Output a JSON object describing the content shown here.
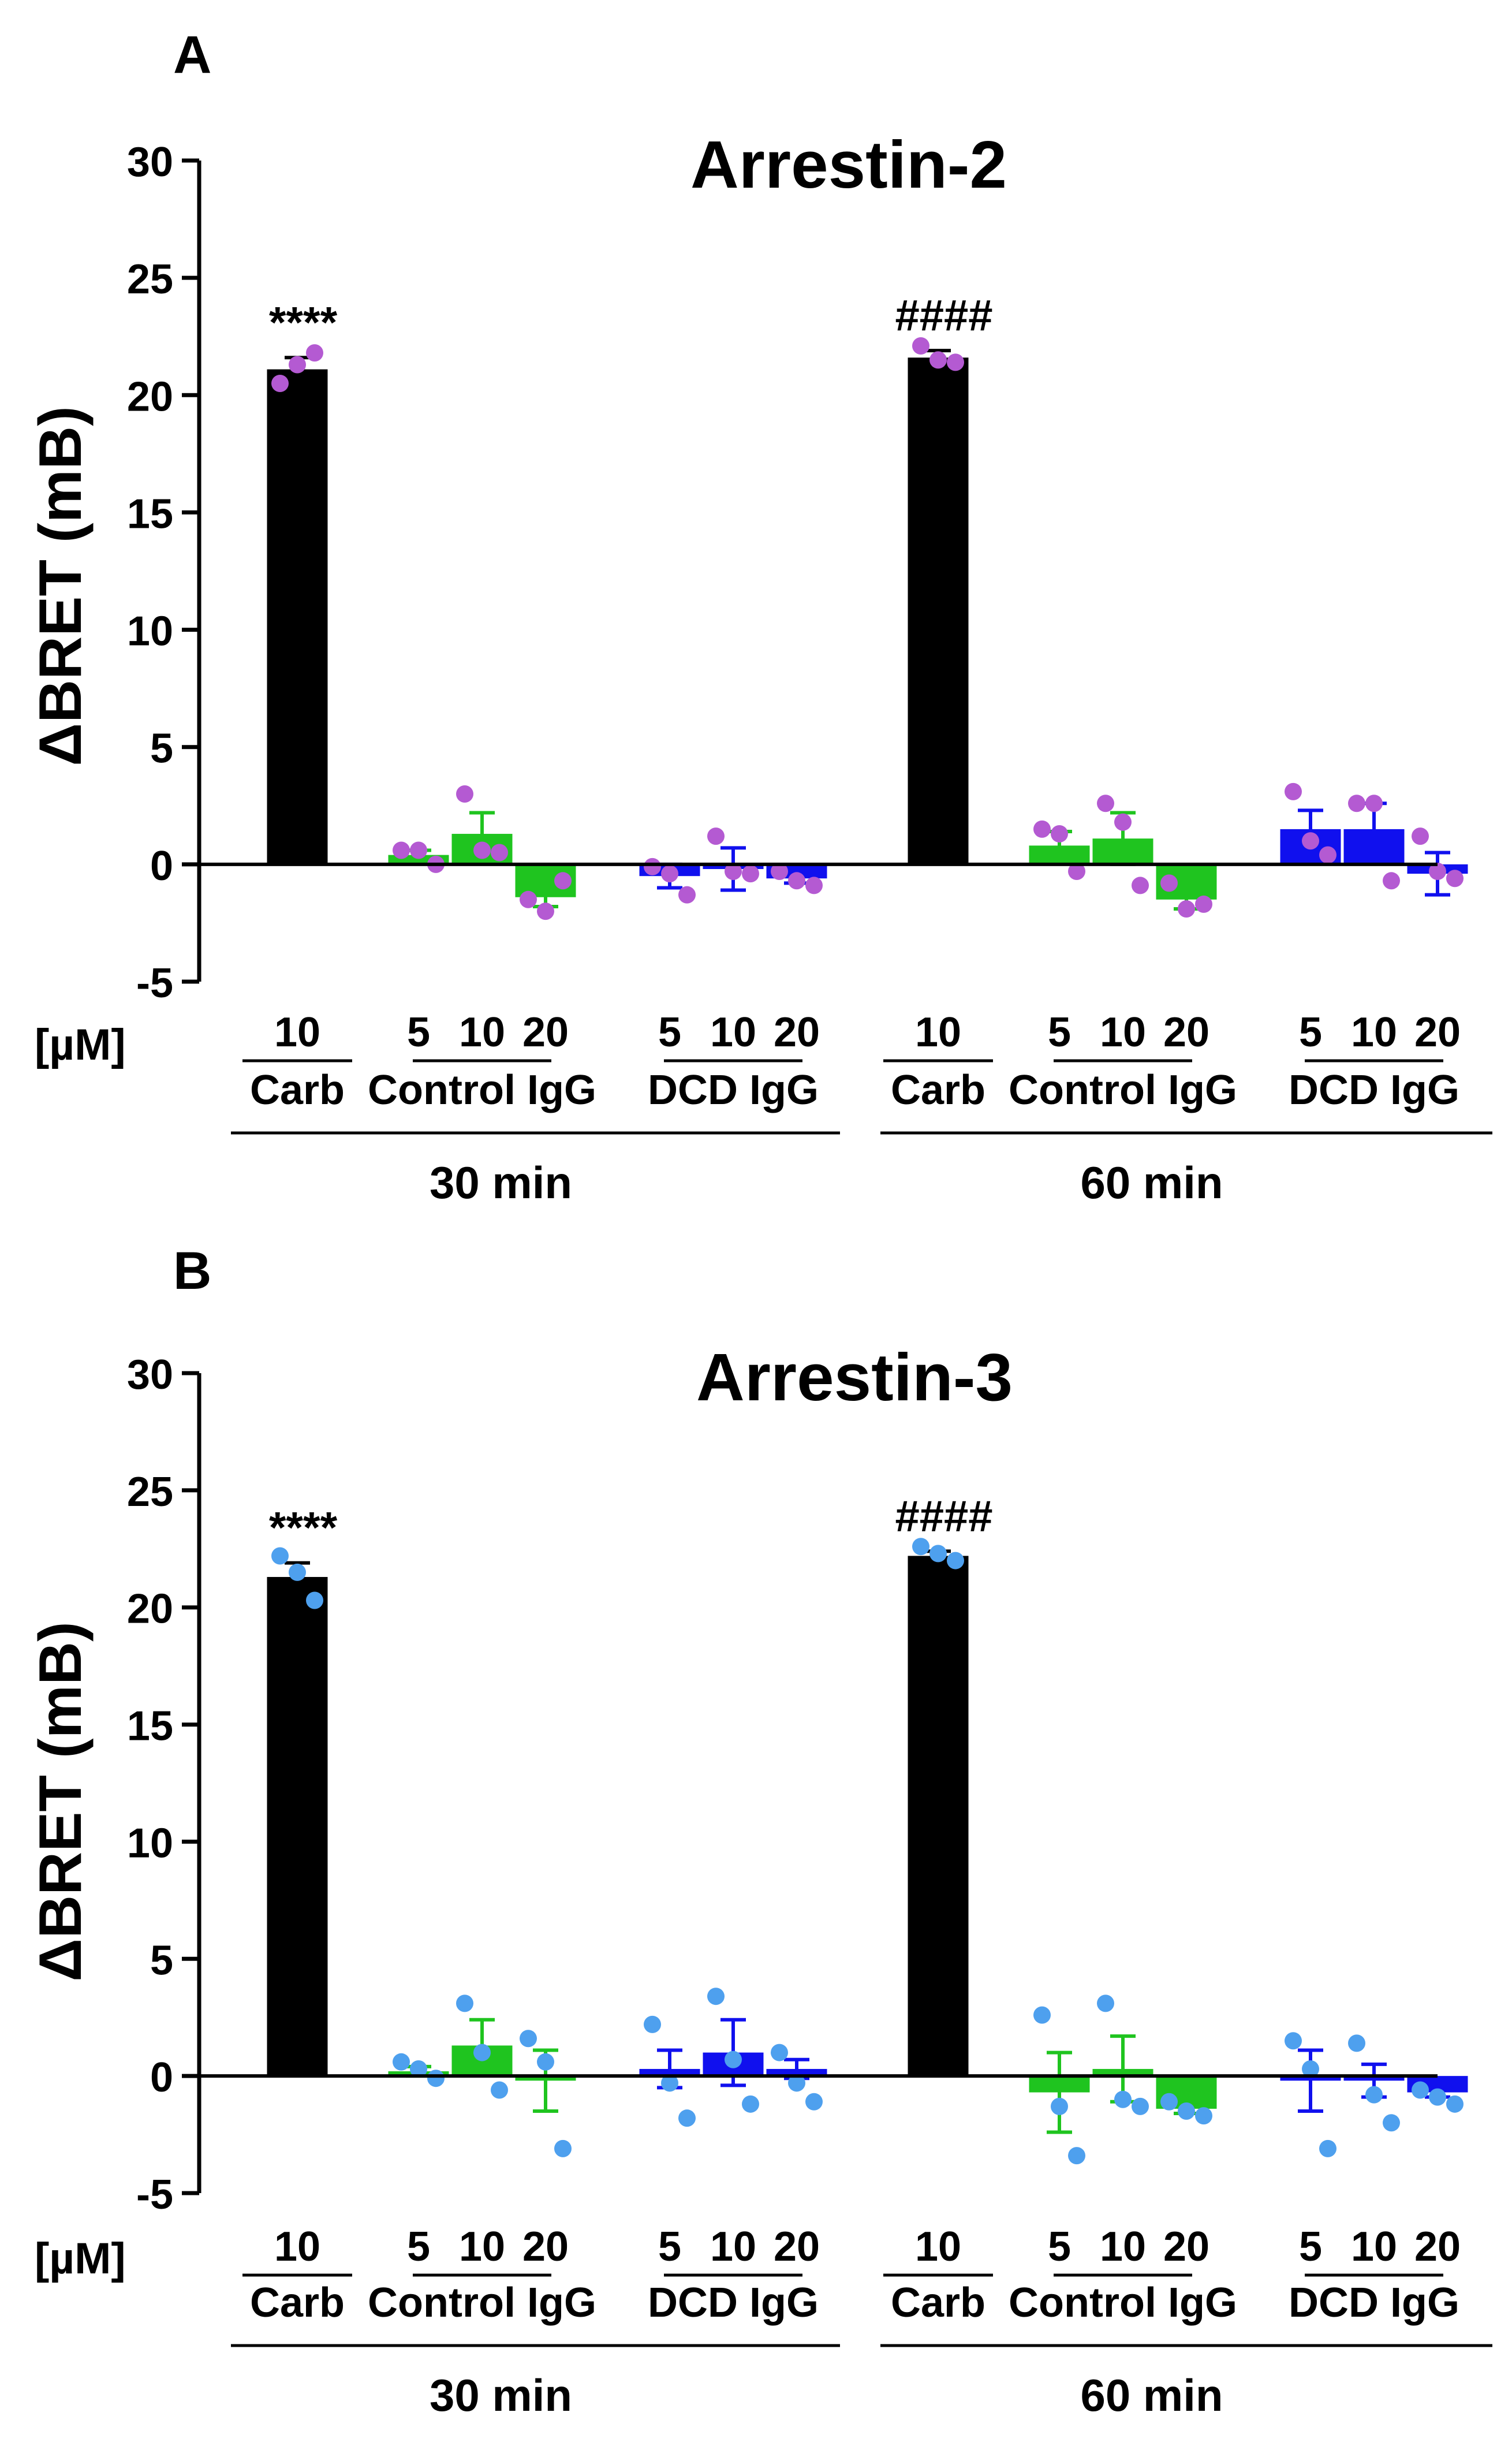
{
  "colors": {
    "carb": "#000000",
    "control_igg": "#1fc41f",
    "dcd_igg": "#1010ee",
    "dot_arrestin2": "#b45ad2",
    "dot_arrestin3": "#4ea0ee"
  },
  "unit_label": "[µM]",
  "chart_data": [
    {
      "panel_letter": "A",
      "type": "bar",
      "title": "Arrestin-2",
      "ylabel": "ΔBRET (mB)",
      "ylim": [
        -5,
        30
      ],
      "yticks": [
        -5,
        0,
        5,
        10,
        15,
        20,
        25,
        30
      ],
      "dot_color_key": "dot_arrestin2",
      "groups": [
        {
          "time": "30 min",
          "treatments": [
            {
              "name": "Carb",
              "color_key": "carb",
              "doses": [
                "10"
              ],
              "means": [
                21.1
              ],
              "sems": [
                0.5
              ],
              "points": [
                [
                  20.5,
                  21.3,
                  21.8
                ]
              ],
              "annotation": "****"
            },
            {
              "name": "Control IgG",
              "color_key": "control_igg",
              "doses": [
                "5",
                "10",
                "20"
              ],
              "means": [
                0.4,
                1.3,
                -1.4
              ],
              "sems": [
                0.2,
                0.9,
                0.4
              ],
              "points": [
                [
                  0.6,
                  0.6,
                  0.0
                ],
                [
                  3.0,
                  0.6,
                  0.5
                ],
                [
                  -1.5,
                  -2.0,
                  -0.7
                ]
              ]
            },
            {
              "name": "DCD IgG",
              "color_key": "dcd_igg",
              "doses": [
                "5",
                "10",
                "20"
              ],
              "means": [
                -0.5,
                -0.2,
                -0.6
              ],
              "sems": [
                0.5,
                0.9,
                0.2
              ],
              "points": [
                [
                  -0.1,
                  -0.4,
                  -1.3
                ],
                [
                  1.2,
                  -0.3,
                  -0.4
                ],
                [
                  -0.3,
                  -0.7,
                  -0.9
                ]
              ]
            }
          ]
        },
        {
          "time": "60 min",
          "treatments": [
            {
              "name": "Carb",
              "color_key": "carb",
              "doses": [
                "10"
              ],
              "means": [
                21.6
              ],
              "sems": [
                0.3
              ],
              "points": [
                [
                  22.1,
                  21.5,
                  21.4
                ]
              ],
              "annotation": "####"
            },
            {
              "name": "Control IgG",
              "color_key": "control_igg",
              "doses": [
                "5",
                "10",
                "20"
              ],
              "means": [
                0.8,
                1.1,
                -1.5
              ],
              "sems": [
                0.6,
                1.1,
                0.4
              ],
              "points": [
                [
                  1.5,
                  1.3,
                  -0.3
                ],
                [
                  2.6,
                  1.8,
                  -0.9
                ],
                [
                  -0.8,
                  -1.9,
                  -1.7
                ]
              ]
            },
            {
              "name": "DCD IgG",
              "color_key": "dcd_igg",
              "doses": [
                "5",
                "10",
                "20"
              ],
              "means": [
                1.5,
                1.5,
                -0.4
              ],
              "sems": [
                0.8,
                1.1,
                0.9
              ],
              "points": [
                [
                  3.1,
                  1.0,
                  0.4
                ],
                [
                  2.6,
                  2.6,
                  -0.7
                ],
                [
                  1.2,
                  -0.3,
                  -0.6
                ]
              ]
            }
          ]
        }
      ]
    },
    {
      "panel_letter": "B",
      "type": "bar",
      "title": "Arrestin-3",
      "ylabel": "ΔBRET (mB)",
      "ylim": [
        -5,
        30
      ],
      "yticks": [
        -5,
        0,
        5,
        10,
        15,
        20,
        25,
        30
      ],
      "dot_color_key": "dot_arrestin3",
      "groups": [
        {
          "time": "30 min",
          "treatments": [
            {
              "name": "Carb",
              "color_key": "carb",
              "doses": [
                "10"
              ],
              "means": [
                21.3
              ],
              "sems": [
                0.6
              ],
              "points": [
                [
                  22.2,
                  21.5,
                  20.3
                ]
              ],
              "annotation": "****"
            },
            {
              "name": "Control IgG",
              "color_key": "control_igg",
              "doses": [
                "5",
                "10",
                "20"
              ],
              "means": [
                0.2,
                1.3,
                -0.2
              ],
              "sems": [
                0.2,
                1.1,
                1.3
              ],
              "points": [
                [
                  0.6,
                  0.3,
                  -0.1
                ],
                [
                  3.1,
                  1.0,
                  -0.6
                ],
                [
                  1.6,
                  0.6,
                  -3.1
                ]
              ]
            },
            {
              "name": "DCD IgG",
              "color_key": "dcd_igg",
              "doses": [
                "5",
                "10",
                "20"
              ],
              "means": [
                0.3,
                1.0,
                0.3
              ],
              "sems": [
                0.8,
                1.4,
                0.4
              ],
              "points": [
                [
                  2.2,
                  -0.3,
                  -1.8
                ],
                [
                  3.4,
                  0.7,
                  -1.2
                ],
                [
                  1.0,
                  -0.3,
                  -1.1
                ]
              ]
            }
          ]
        },
        {
          "time": "60 min",
          "treatments": [
            {
              "name": "Carb",
              "color_key": "carb",
              "doses": [
                "10"
              ],
              "means": [
                22.2
              ],
              "sems": [
                0.2
              ],
              "points": [
                [
                  22.6,
                  22.3,
                  22.0
                ]
              ],
              "annotation": "####"
            },
            {
              "name": "Control IgG",
              "color_key": "control_igg",
              "doses": [
                "5",
                "10",
                "20"
              ],
              "means": [
                -0.7,
                0.3,
                -1.4
              ],
              "sems": [
                1.7,
                1.4,
                0.2
              ],
              "points": [
                [
                  2.6,
                  -1.3,
                  -3.4
                ],
                [
                  3.1,
                  -1.0,
                  -1.3
                ],
                [
                  -1.1,
                  -1.5,
                  -1.7
                ]
              ]
            },
            {
              "name": "DCD IgG",
              "color_key": "dcd_igg",
              "doses": [
                "5",
                "10",
                "20"
              ],
              "means": [
                -0.2,
                -0.2,
                -0.7
              ],
              "sems": [
                1.3,
                0.7,
                0.2
              ],
              "points": [
                [
                  1.5,
                  0.3,
                  -3.1
                ],
                [
                  1.4,
                  -0.8,
                  -2.0
                ],
                [
                  -0.6,
                  -0.9,
                  -1.2
                ]
              ]
            }
          ]
        }
      ]
    }
  ]
}
